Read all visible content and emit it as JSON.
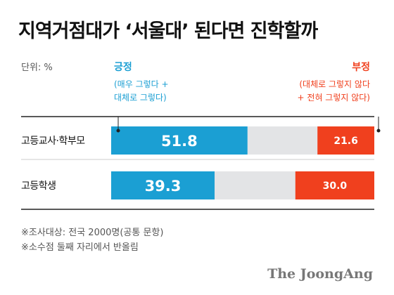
{
  "colors": {
    "positive": "#1b9fd3",
    "neutral": "#e3e4e6",
    "negative": "#f0401e"
  },
  "chart_data": {
    "type": "bar",
    "stacked": true,
    "orientation": "horizontal",
    "title": "지역거점대가 ‘서울대’ 된다면 진학할까",
    "unit": "단위: %",
    "xlim": [
      0,
      100
    ],
    "categories": [
      "고등교사·학부모",
      "고등학생"
    ],
    "positive": {
      "label": "긍정",
      "sub": [
        "(매우 그렇다 +",
        "대체로 그렇다)"
      ],
      "values": [
        51.8,
        39.3
      ]
    },
    "negative": {
      "label": "부정",
      "sub": [
        "(대체로 그렇지 않다",
        "+ 전혀 그렇지 않다)"
      ],
      "values": [
        21.6,
        30.0
      ]
    }
  },
  "value_labels": {
    "positive": [
      "51.8",
      "39.3"
    ],
    "negative": [
      "21.6",
      "30.0"
    ]
  },
  "notes": [
    "※조사대상: 전국 2000명(공통 문항)",
    "※소수점 둘째 자리에서 반올림"
  ],
  "source": "The JoongAng"
}
